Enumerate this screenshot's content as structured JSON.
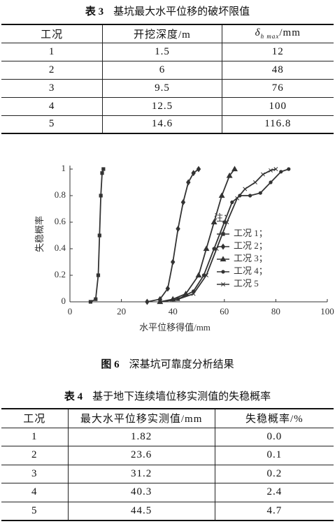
{
  "table3": {
    "label": "表 3",
    "title": "基坑最大水平位移的破坏限值",
    "headers": [
      "工况",
      "开挖深度/m",
      {
        "symbol": "δ",
        "subscript": "h max",
        "unit": "/mm"
      }
    ],
    "rows": [
      [
        "1",
        "1.5",
        "12"
      ],
      [
        "2",
        "6",
        "48"
      ],
      [
        "3",
        "9.5",
        "76"
      ],
      [
        "4",
        "12.5",
        "100"
      ],
      [
        "5",
        "14.6",
        "116.8"
      ]
    ]
  },
  "chart_data": {
    "type": "line",
    "xlabel": "水平位移得值/mm",
    "ylabel": "失稳概率",
    "legend_title": "注：",
    "xlim": [
      0,
      100
    ],
    "xticks": [
      0,
      20,
      40,
      60,
      80,
      100
    ],
    "ylim": [
      0,
      1
    ],
    "yticks": [
      0,
      0.2,
      0.4,
      0.6,
      0.8,
      1
    ],
    "series": [
      {
        "name": "工况 1；",
        "color": "#333333",
        "marker": "square",
        "x": [
          8,
          10,
          11,
          11.5,
          12,
          12.5,
          13
        ],
        "values": [
          0,
          0.02,
          0.2,
          0.5,
          0.8,
          0.97,
          1
        ]
      },
      {
        "name": "工况 2；",
        "color": "#333333",
        "marker": "diamond",
        "x": [
          30,
          35,
          38,
          40,
          42,
          44,
          46,
          48,
          50
        ],
        "values": [
          0,
          0.02,
          0.1,
          0.3,
          0.55,
          0.75,
          0.9,
          0.97,
          1
        ]
      },
      {
        "name": "工况 3；",
        "color": "#333333",
        "marker": "triangle",
        "x": [
          35,
          40,
          45,
          50,
          53,
          56,
          59,
          62,
          64
        ],
        "values": [
          0,
          0.02,
          0.06,
          0.2,
          0.4,
          0.6,
          0.8,
          0.95,
          1
        ]
      },
      {
        "name": "工况 4；",
        "color": "#333333",
        "marker": "circle",
        "x": [
          35,
          42,
          48,
          52,
          56,
          60,
          63,
          66,
          70,
          74,
          78,
          82,
          85
        ],
        "values": [
          0,
          0.02,
          0.08,
          0.2,
          0.4,
          0.6,
          0.75,
          0.8,
          0.8,
          0.82,
          0.9,
          0.98,
          1
        ]
      },
      {
        "name": "工况 5",
        "color": "#333333",
        "marker": "star",
        "x": [
          35,
          42,
          48,
          53,
          57,
          61,
          65,
          68,
          72,
          75,
          78,
          80
        ],
        "values": [
          0,
          0.02,
          0.06,
          0.2,
          0.4,
          0.6,
          0.78,
          0.85,
          0.9,
          0.96,
          0.99,
          1
        ]
      }
    ]
  },
  "figure_caption": {
    "label": "图 6",
    "title": "深基坑可靠度分析结果"
  },
  "table4": {
    "label": "表 4",
    "title": "基于地下连续墙位移实测值的失稳概率",
    "headers": [
      "工况",
      "最大水平位移实测值/mm",
      "失稳概率/%"
    ],
    "rows": [
      [
        "1",
        "1.82",
        "0.0"
      ],
      [
        "2",
        "23.6",
        "0.1"
      ],
      [
        "3",
        "31.2",
        "0.2"
      ],
      [
        "4",
        "40.3",
        "2.4"
      ],
      [
        "5",
        "44.5",
        "4.7"
      ]
    ]
  }
}
